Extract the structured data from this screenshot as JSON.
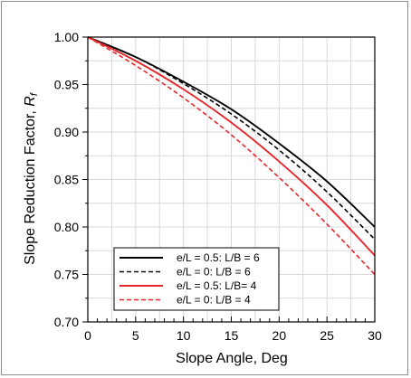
{
  "chart_data": {
    "type": "line",
    "xlabel": "Slope Angle, Deg",
    "ylabel_main": "Slope Reduction Factor, ",
    "ylabel_symbol": "R",
    "ylabel_subscript": "f",
    "xlim": [
      0,
      30
    ],
    "ylim": [
      0.7,
      1.0
    ],
    "x_ticks": [
      "0",
      "5",
      "10",
      "15",
      "20",
      "25",
      "30"
    ],
    "y_ticks": [
      "0.70",
      "0.75",
      "0.80",
      "0.85",
      "0.90",
      "0.95",
      "1.00"
    ],
    "grid": true,
    "legend_position": "bottom-left",
    "series": [
      {
        "name": "e/L = 0.5: L/B = 6",
        "color": "#000000",
        "style": "solid",
        "x": [
          0,
          5,
          10,
          15,
          20,
          25,
          30
        ],
        "y": [
          1.0,
          0.979,
          0.953,
          0.924,
          0.888,
          0.848,
          0.8
        ]
      },
      {
        "name": "e/L = 0: L/B = 6",
        "color": "#000000",
        "style": "dashed",
        "x": [
          0,
          5,
          10,
          15,
          20,
          25,
          30
        ],
        "y": [
          1.0,
          0.979,
          0.951,
          0.919,
          0.881,
          0.837,
          0.787
        ]
      },
      {
        "name": "e/L = 0.5: L/B= 4",
        "color": "#e8262a",
        "style": "solid",
        "x": [
          0,
          5,
          10,
          15,
          20,
          25,
          30
        ],
        "y": [
          1.0,
          0.975,
          0.945,
          0.91,
          0.869,
          0.823,
          0.77
        ]
      },
      {
        "name": "e/L = 0: L/B = 4",
        "color": "#e8262a",
        "style": "dashed",
        "x": [
          0,
          5,
          10,
          15,
          20,
          25,
          30
        ],
        "y": [
          1.0,
          0.97,
          0.936,
          0.897,
          0.852,
          0.803,
          0.75
        ]
      }
    ]
  }
}
